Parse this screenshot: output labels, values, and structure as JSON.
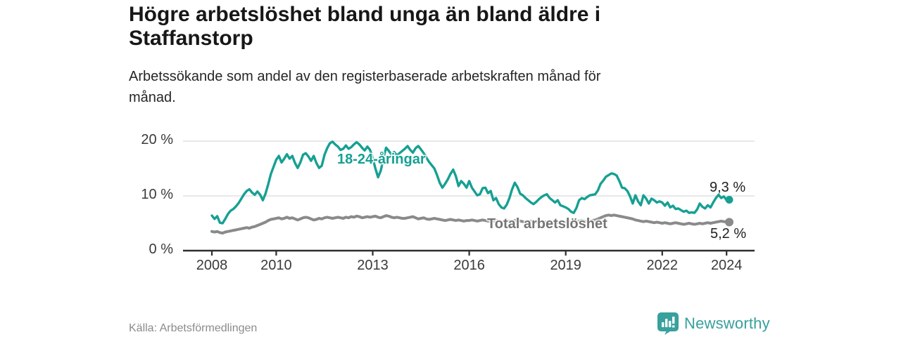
{
  "header": {
    "title_lines": [
      "Högre arbetslöshet bland unga än bland äldre i",
      "Staffanstorp"
    ],
    "subtitle_lines": [
      "Arbetssökande som andel av den registerbaserade arbetskraften månad för",
      "månad."
    ]
  },
  "footer": {
    "source": "Källa: Arbetsförmedlingen",
    "brand": "Newsworthy",
    "brand_color": "#38a09d"
  },
  "colors": {
    "accent_teal": "#16a093",
    "total_gray": "#8a8a8a",
    "label_gray": "#757575",
    "grid": "#d9d9d9",
    "axis": "#2e2e2e",
    "text_dark": "#171717"
  },
  "chart_data": {
    "type": "line",
    "title": "Högre arbetslöshet bland unga än bland äldre i Staffanstorp",
    "subtitle": "Arbetssökande som andel av den registerbaserade arbetskraften månad för månad.",
    "xlabel": "",
    "ylabel": "",
    "ylim": [
      0,
      20
    ],
    "grid": "horizontal",
    "legend_position": "inline-labels",
    "x_start_year": 2008,
    "x_step_months": 1,
    "x_ticks": [
      {
        "value": 2008,
        "label": "2008"
      },
      {
        "value": 2010,
        "label": "2010"
      },
      {
        "value": 2013,
        "label": "2013"
      },
      {
        "value": 2016,
        "label": "2016"
      },
      {
        "value": 2019,
        "label": "2019"
      },
      {
        "value": 2022,
        "label": "2022"
      },
      {
        "value": 2024,
        "label": "2024"
      }
    ],
    "y_ticks": [
      {
        "value": 20,
        "label": "20 %"
      },
      {
        "value": 10,
        "label": "10 %"
      },
      {
        "value": 0,
        "label": "0 %"
      }
    ],
    "series": [
      {
        "name": "18-24-åringar",
        "color": "#16a093",
        "end_label": "9,3 %",
        "end_value": 9.3,
        "values": [
          6.4,
          5.8,
          6.3,
          5.1,
          5.0,
          5.8,
          6.7,
          7.3,
          7.6,
          8.1,
          8.7,
          9.5,
          10.3,
          10.9,
          11.2,
          10.6,
          10.2,
          10.8,
          10.2,
          9.2,
          10.4,
          12.1,
          14.0,
          15.3,
          16.6,
          17.3,
          16.1,
          16.8,
          17.6,
          16.8,
          17.3,
          16.0,
          15.1,
          16.1,
          17.5,
          17.8,
          17.2,
          16.4,
          17.3,
          16.0,
          15.1,
          15.5,
          17.5,
          18.7,
          19.6,
          19.9,
          19.4,
          19.0,
          18.4,
          18.6,
          19.2,
          18.6,
          18.9,
          19.4,
          19.8,
          19.4,
          18.8,
          18.3,
          19.0,
          18.4,
          16.9,
          15.0,
          13.4,
          14.6,
          16.8,
          18.8,
          18.2,
          17.5,
          18.0,
          17.4,
          17.8,
          18.2,
          18.6,
          19.1,
          18.4,
          17.9,
          18.7,
          19.1,
          18.5,
          17.8,
          17.0,
          16.2,
          15.6,
          15.0,
          13.8,
          12.4,
          11.5,
          12.2,
          13.0,
          14.0,
          14.8,
          13.6,
          11.8,
          12.7,
          12.2,
          11.5,
          12.7,
          11.5,
          10.8,
          10.1,
          10.3,
          11.4,
          11.5,
          10.5,
          10.9,
          9.2,
          9.6,
          8.5,
          7.9,
          7.7,
          8.4,
          9.6,
          11.2,
          12.4,
          11.6,
          10.4,
          10.1,
          9.6,
          9.2,
          8.8,
          8.5,
          8.9,
          9.4,
          9.8,
          10.1,
          10.3,
          9.6,
          9.2,
          8.8,
          9.2,
          8.3,
          8.1,
          7.9,
          7.6,
          7.1,
          6.9,
          7.8,
          9.2,
          9.6,
          9.4,
          9.8,
          10.1,
          10.2,
          10.3,
          11.0,
          12.2,
          12.8,
          13.5,
          13.8,
          14.1,
          14.0,
          13.7,
          12.7,
          11.5,
          11.4,
          10.9,
          9.9,
          8.6,
          10.1,
          9.0,
          8.3,
          10.1,
          9.5,
          8.6,
          9.5,
          9.2,
          8.8,
          9.0,
          8.8,
          8.2,
          8.8,
          7.9,
          8.2,
          7.6,
          7.7,
          7.4,
          7.1,
          7.3,
          6.9,
          7.0,
          6.9,
          7.5,
          8.6,
          8.0,
          7.7,
          8.3,
          7.9,
          8.8,
          9.6,
          10.2,
          9.6,
          9.9,
          9.2,
          9.3
        ]
      },
      {
        "name": "Total arbetslöshet",
        "color": "#8a8a8a",
        "end_label": "5,2 %",
        "end_value": 5.2,
        "values": [
          3.5,
          3.4,
          3.5,
          3.3,
          3.2,
          3.4,
          3.5,
          3.6,
          3.7,
          3.8,
          3.9,
          4.0,
          4.1,
          4.2,
          4.1,
          4.3,
          4.4,
          4.6,
          4.8,
          5.0,
          5.2,
          5.5,
          5.7,
          5.8,
          5.9,
          6.0,
          5.8,
          5.9,
          6.1,
          5.9,
          6.0,
          5.8,
          5.6,
          5.8,
          6.0,
          6.1,
          6.0,
          5.8,
          5.6,
          5.7,
          5.9,
          5.8,
          6.0,
          6.1,
          6.0,
          5.9,
          6.0,
          6.1,
          6.0,
          5.9,
          6.1,
          6.0,
          6.2,
          6.1,
          6.3,
          6.2,
          6.0,
          6.1,
          6.2,
          6.1,
          6.2,
          6.3,
          6.1,
          6.0,
          6.2,
          6.4,
          6.3,
          6.1,
          6.0,
          6.1,
          6.0,
          5.9,
          5.9,
          6.0,
          6.1,
          6.2,
          6.0,
          5.8,
          5.9,
          6.0,
          5.8,
          5.7,
          5.8,
          5.9,
          5.8,
          5.7,
          5.6,
          5.5,
          5.6,
          5.7,
          5.6,
          5.5,
          5.6,
          5.5,
          5.4,
          5.5,
          5.5,
          5.6,
          5.5,
          5.4,
          5.5,
          5.6,
          5.5,
          5.4,
          5.3,
          5.4,
          5.5,
          5.4,
          5.3,
          5.2,
          5.3,
          5.4,
          5.3,
          5.5,
          5.6,
          5.4,
          5.3,
          5.2,
          5.3,
          5.4,
          5.3,
          5.2,
          5.1,
          5.2,
          5.3,
          5.2,
          5.4,
          5.3,
          5.2,
          5.1,
          5.2,
          5.3,
          5.2,
          5.3,
          5.2,
          5.1,
          5.2,
          5.4,
          5.5,
          5.4,
          5.3,
          5.4,
          5.5,
          5.6,
          5.8,
          6.0,
          6.2,
          6.4,
          6.5,
          6.4,
          6.5,
          6.4,
          6.3,
          6.2,
          6.1,
          6.0,
          5.9,
          5.8,
          5.6,
          5.5,
          5.4,
          5.3,
          5.4,
          5.3,
          5.2,
          5.1,
          5.2,
          5.1,
          5.0,
          5.1,
          5.0,
          4.9,
          5.0,
          5.1,
          5.0,
          4.9,
          4.8,
          4.9,
          5.0,
          4.9,
          4.8,
          4.9,
          5.0,
          4.9,
          5.0,
          5.1,
          5.0,
          5.1,
          5.2,
          5.3,
          5.4,
          5.3,
          5.3,
          5.2
        ]
      }
    ]
  }
}
